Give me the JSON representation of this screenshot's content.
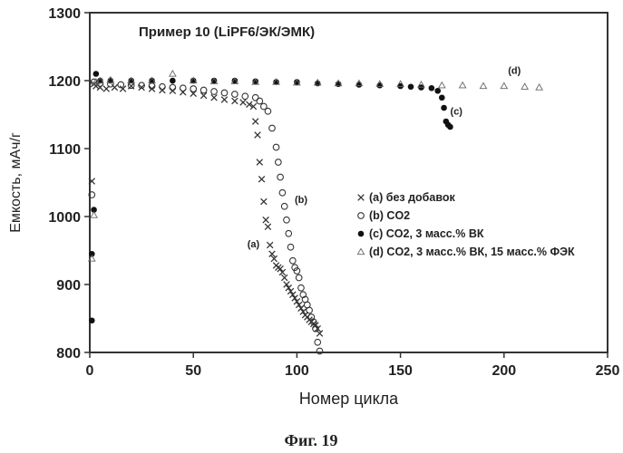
{
  "chart_data": {
    "type": "scatter",
    "title": "Пример 10 (LiPF6/ЭК/ЭМК)",
    "xlabel": "Номер цикла",
    "ylabel": "Емкость, мАч/г",
    "xlim": [
      0,
      250
    ],
    "ylim": [
      800,
      1300
    ],
    "xticks": [
      0,
      50,
      100,
      150,
      200,
      250
    ],
    "yticks": [
      800,
      900,
      1000,
      1100,
      1200,
      1300
    ],
    "grid": false,
    "legend_position": "center-right",
    "caption": "Фиг. 19",
    "annotations": [
      {
        "text": "(a)",
        "x": 79,
        "y": 955
      },
      {
        "text": "(b)",
        "x": 102,
        "y": 1020
      },
      {
        "text": "(c)",
        "x": 177,
        "y": 1150
      },
      {
        "text": "(d)",
        "x": 205,
        "y": 1210
      }
    ],
    "series": [
      {
        "name": "(a) без добавок",
        "marker": "x",
        "x": [
          1,
          2,
          3,
          5,
          8,
          12,
          16,
          20,
          25,
          30,
          35,
          40,
          45,
          50,
          55,
          60,
          65,
          70,
          74,
          77,
          79,
          80,
          81,
          82,
          83,
          84,
          85,
          86,
          87,
          88,
          89,
          90,
          91,
          92,
          93,
          94,
          95,
          96,
          97,
          98,
          99,
          100,
          101,
          102,
          103,
          104,
          105,
          106,
          107,
          108,
          109,
          110,
          111
        ],
        "y": [
          1052,
          1195,
          1192,
          1190,
          1188,
          1190,
          1188,
          1192,
          1190,
          1188,
          1186,
          1185,
          1183,
          1181,
          1178,
          1175,
          1172,
          1170,
          1168,
          1165,
          1162,
          1140,
          1120,
          1080,
          1055,
          1022,
          995,
          985,
          958,
          945,
          938,
          928,
          925,
          923,
          918,
          910,
          900,
          895,
          890,
          885,
          880,
          875,
          870,
          865,
          860,
          855,
          852,
          848,
          845,
          842,
          840,
          835,
          828
        ]
      },
      {
        "name": "(b) CO2",
        "marker": "o",
        "x": [
          1,
          2,
          5,
          10,
          15,
          20,
          25,
          30,
          35,
          40,
          45,
          50,
          55,
          60,
          65,
          70,
          75,
          80,
          82,
          84,
          86,
          88,
          90,
          91,
          92,
          93,
          94,
          95,
          96,
          97,
          98,
          99,
          100,
          101,
          102,
          103,
          104,
          105,
          106,
          107,
          108,
          109,
          110,
          111
        ],
        "y": [
          1032,
          1198,
          1196,
          1195,
          1194,
          1193,
          1193,
          1192,
          1191,
          1190,
          1189,
          1188,
          1186,
          1184,
          1182,
          1180,
          1177,
          1175,
          1170,
          1162,
          1155,
          1130,
          1102,
          1080,
          1058,
          1035,
          1015,
          995,
          975,
          955,
          935,
          925,
          920,
          910,
          895,
          885,
          878,
          870,
          862,
          852,
          845,
          835,
          815,
          802
        ]
      },
      {
        "name": "(c) CO2, 3 масс.% ВК",
        "marker": "filled-circle",
        "x": [
          1,
          1,
          2,
          3,
          5,
          10,
          20,
          30,
          40,
          50,
          60,
          70,
          80,
          90,
          100,
          110,
          120,
          130,
          140,
          150,
          155,
          160,
          165,
          168,
          170,
          171,
          172,
          173,
          174
        ],
        "y": [
          847,
          945,
          1010,
          1210,
          1200,
          1200,
          1200,
          1200,
          1200,
          1200,
          1200,
          1200,
          1199,
          1198,
          1198,
          1196,
          1195,
          1194,
          1193,
          1192,
          1191,
          1190,
          1189,
          1185,
          1175,
          1160,
          1140,
          1135,
          1132
        ]
      },
      {
        "name": "(d) CO2, 3 масс.% ВК, 15 масс.% ФЭК",
        "marker": "triangle",
        "x": [
          1,
          2,
          3,
          5,
          10,
          20,
          30,
          40,
          50,
          60,
          70,
          80,
          90,
          100,
          110,
          120,
          130,
          140,
          150,
          160,
          170,
          180,
          190,
          200,
          210,
          217
        ],
        "y": [
          938,
          1002,
          1198,
          1200,
          1201,
          1200,
          1200,
          1210,
          1200,
          1199,
          1199,
          1198,
          1198,
          1197,
          1197,
          1196,
          1196,
          1195,
          1195,
          1194,
          1193,
          1193,
          1192,
          1192,
          1191,
          1190
        ]
      }
    ]
  }
}
